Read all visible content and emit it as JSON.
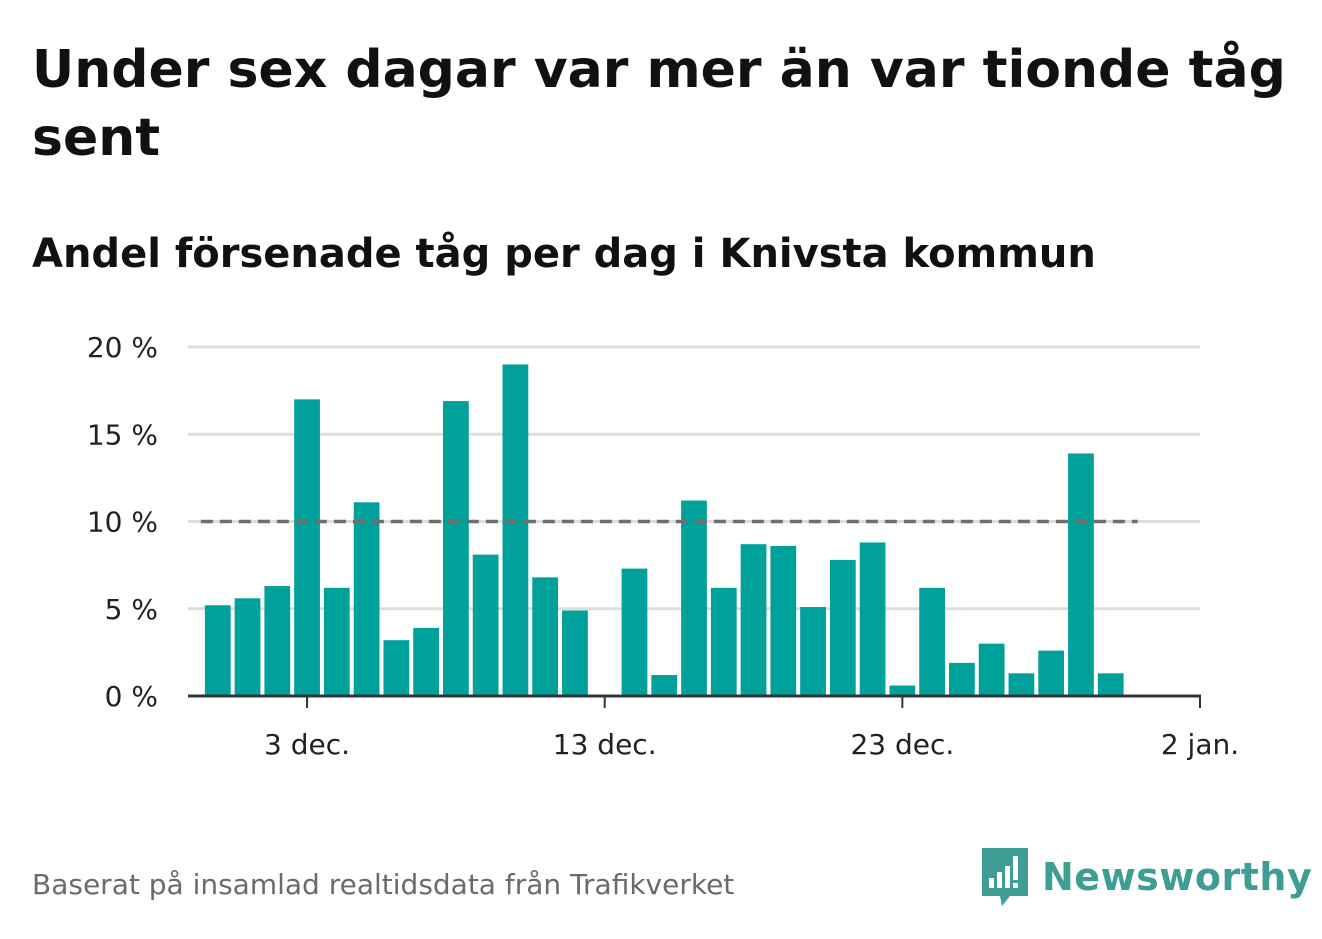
{
  "title": "Under sex dagar var mer än var tionde tåg sent",
  "subtitle": "Andel försenade tåg per dag i Knivsta kommun",
  "source": "Baserat på insamlad realtidsdata från Trafikverket",
  "brand": {
    "name": "Newsworthy",
    "icon": "newsworthy-logo-icon",
    "color": "#3e9e93"
  },
  "colors": {
    "bar": "#00a19b",
    "reference_line": "#6e6e6e",
    "grid": "#dddddd",
    "axis": "#333333"
  },
  "chart_data": {
    "type": "bar",
    "ylim": [
      0,
      20
    ],
    "yticks": [
      0,
      5,
      10,
      15,
      20
    ],
    "ytick_labels": [
      "0 %",
      "5 %",
      "10 %",
      "15 %",
      "20 %"
    ],
    "xlim": [
      "2023-11-29",
      "2024-01-02"
    ],
    "xticks": [
      {
        "date": "2023-12-03",
        "label": "3 dec."
      },
      {
        "date": "2023-12-13",
        "label": "13 dec."
      },
      {
        "date": "2023-12-23",
        "label": "23 dec."
      },
      {
        "date": "2024-01-02",
        "label": "2 jan."
      }
    ],
    "reference_line": 10,
    "grid": true,
    "values": [
      {
        "date": "2023-11-30",
        "value": 5.2
      },
      {
        "date": "2023-12-01",
        "value": 5.6
      },
      {
        "date": "2023-12-02",
        "value": 6.3
      },
      {
        "date": "2023-12-03",
        "value": 17.0
      },
      {
        "date": "2023-12-04",
        "value": 6.2
      },
      {
        "date": "2023-12-05",
        "value": 11.1
      },
      {
        "date": "2023-12-06",
        "value": 3.2
      },
      {
        "date": "2023-12-07",
        "value": 3.9
      },
      {
        "date": "2023-12-08",
        "value": 16.9
      },
      {
        "date": "2023-12-09",
        "value": 8.1
      },
      {
        "date": "2023-12-10",
        "value": 19.0
      },
      {
        "date": "2023-12-11",
        "value": 6.8
      },
      {
        "date": "2023-12-12",
        "value": 4.9
      },
      {
        "date": "2023-12-14",
        "value": 7.3
      },
      {
        "date": "2023-12-15",
        "value": 1.2
      },
      {
        "date": "2023-12-16",
        "value": 11.2
      },
      {
        "date": "2023-12-17",
        "value": 6.2
      },
      {
        "date": "2023-12-18",
        "value": 8.7
      },
      {
        "date": "2023-12-19",
        "value": 8.6
      },
      {
        "date": "2023-12-20",
        "value": 5.1
      },
      {
        "date": "2023-12-21",
        "value": 7.8
      },
      {
        "date": "2023-12-22",
        "value": 8.8
      },
      {
        "date": "2023-12-23",
        "value": 0.6
      },
      {
        "date": "2023-12-24",
        "value": 6.2
      },
      {
        "date": "2023-12-25",
        "value": 1.9
      },
      {
        "date": "2023-12-26",
        "value": 3.0
      },
      {
        "date": "2023-12-27",
        "value": 1.3
      },
      {
        "date": "2023-12-28",
        "value": 2.6
      },
      {
        "date": "2023-12-29",
        "value": 13.9
      },
      {
        "date": "2023-12-30",
        "value": 1.3
      }
    ]
  }
}
